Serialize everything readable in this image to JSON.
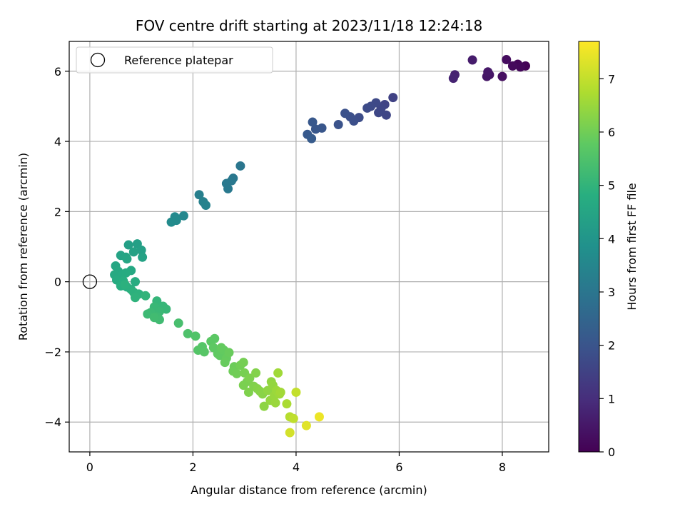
{
  "chart_data": {
    "type": "scatter",
    "title": "FOV centre drift starting at 2023/11/18 12:24:18",
    "xlabel": "Angular distance from reference (arcmin)",
    "ylabel": "Rotation from reference (arcmin)",
    "xlim": [
      -0.4,
      8.9
    ],
    "ylim": [
      -4.85,
      6.85
    ],
    "xticks": [
      0,
      2,
      4,
      6,
      8
    ],
    "yticks": [
      -4,
      -2,
      0,
      2,
      4,
      6
    ],
    "grid": true,
    "legend": {
      "placement": "top-left",
      "entries": [
        "Reference platepar"
      ]
    },
    "reference_point": {
      "x": 0,
      "y": 0,
      "label": "Reference platepar"
    },
    "colorbar": {
      "label": "Hours from first FF file",
      "colormap": "viridis",
      "range": [
        0,
        7.7
      ],
      "ticks": [
        0,
        1,
        2,
        3,
        4,
        5,
        6,
        7
      ]
    },
    "points": [
      {
        "x": 8.45,
        "y": 6.15,
        "hours": 0.05
      },
      {
        "x": 8.3,
        "y": 6.2,
        "hours": 0.1
      },
      {
        "x": 8.35,
        "y": 6.12,
        "hours": 0.15
      },
      {
        "x": 8.2,
        "y": 6.15,
        "hours": 0.2
      },
      {
        "x": 8.08,
        "y": 6.33,
        "hours": 0.25
      },
      {
        "x": 8.0,
        "y": 5.85,
        "hours": 0.3
      },
      {
        "x": 7.75,
        "y": 5.9,
        "hours": 0.4
      },
      {
        "x": 7.7,
        "y": 5.85,
        "hours": 0.45
      },
      {
        "x": 7.72,
        "y": 5.98,
        "hours": 0.5
      },
      {
        "x": 7.42,
        "y": 6.32,
        "hours": 0.6
      },
      {
        "x": 7.08,
        "y": 5.9,
        "hours": 0.7
      },
      {
        "x": 7.05,
        "y": 5.8,
        "hours": 0.75
      },
      {
        "x": 5.88,
        "y": 5.25,
        "hours": 1.5
      },
      {
        "x": 5.72,
        "y": 5.05,
        "hours": 1.55
      },
      {
        "x": 5.65,
        "y": 4.95,
        "hours": 1.6
      },
      {
        "x": 5.75,
        "y": 4.75,
        "hours": 1.62
      },
      {
        "x": 5.6,
        "y": 4.82,
        "hours": 1.65
      },
      {
        "x": 5.55,
        "y": 5.1,
        "hours": 1.7
      },
      {
        "x": 5.45,
        "y": 5.0,
        "hours": 1.72
      },
      {
        "x": 5.38,
        "y": 4.95,
        "hours": 1.75
      },
      {
        "x": 5.22,
        "y": 4.68,
        "hours": 1.8
      },
      {
        "x": 5.12,
        "y": 4.58,
        "hours": 1.85
      },
      {
        "x": 5.05,
        "y": 4.7,
        "hours": 1.88
      },
      {
        "x": 4.95,
        "y": 4.8,
        "hours": 1.9
      },
      {
        "x": 4.82,
        "y": 4.48,
        "hours": 1.95
      },
      {
        "x": 4.5,
        "y": 4.38,
        "hours": 2.05
      },
      {
        "x": 4.38,
        "y": 4.35,
        "hours": 2.08
      },
      {
        "x": 4.32,
        "y": 4.55,
        "hours": 2.1
      },
      {
        "x": 4.22,
        "y": 4.2,
        "hours": 2.15
      },
      {
        "x": 4.3,
        "y": 4.08,
        "hours": 2.2
      },
      {
        "x": 2.92,
        "y": 3.3,
        "hours": 3.0
      },
      {
        "x": 2.78,
        "y": 2.95,
        "hours": 3.05
      },
      {
        "x": 2.75,
        "y": 2.88,
        "hours": 3.08
      },
      {
        "x": 2.65,
        "y": 2.8,
        "hours": 3.1
      },
      {
        "x": 2.68,
        "y": 2.65,
        "hours": 3.12
      },
      {
        "x": 2.12,
        "y": 2.48,
        "hours": 3.3
      },
      {
        "x": 2.2,
        "y": 2.28,
        "hours": 3.35
      },
      {
        "x": 2.25,
        "y": 2.18,
        "hours": 3.38
      },
      {
        "x": 1.82,
        "y": 1.88,
        "hours": 3.55
      },
      {
        "x": 1.65,
        "y": 1.85,
        "hours": 3.6
      },
      {
        "x": 1.68,
        "y": 1.75,
        "hours": 3.62
      },
      {
        "x": 1.58,
        "y": 1.7,
        "hours": 3.65
      },
      {
        "x": 0.75,
        "y": 1.05,
        "hours": 4.3
      },
      {
        "x": 0.92,
        "y": 1.08,
        "hours": 4.32
      },
      {
        "x": 1.0,
        "y": 0.9,
        "hours": 4.35
      },
      {
        "x": 0.85,
        "y": 0.85,
        "hours": 4.38
      },
      {
        "x": 1.02,
        "y": 0.7,
        "hours": 4.4
      },
      {
        "x": 0.6,
        "y": 0.75,
        "hours": 4.45
      },
      {
        "x": 0.7,
        "y": 0.7,
        "hours": 4.48
      },
      {
        "x": 0.72,
        "y": 0.65,
        "hours": 4.5
      },
      {
        "x": 0.5,
        "y": 0.45,
        "hours": 4.55
      },
      {
        "x": 0.8,
        "y": 0.32,
        "hours": 4.6
      },
      {
        "x": 0.55,
        "y": 0.3,
        "hours": 4.62
      },
      {
        "x": 0.48,
        "y": 0.2,
        "hours": 4.65
      },
      {
        "x": 0.62,
        "y": 0.18,
        "hours": 4.68
      },
      {
        "x": 0.7,
        "y": 0.25,
        "hours": 4.7
      },
      {
        "x": 0.52,
        "y": 0.05,
        "hours": 4.72
      },
      {
        "x": 0.88,
        "y": 0.0,
        "hours": 4.75
      },
      {
        "x": 0.65,
        "y": 0.02,
        "hours": 4.78
      },
      {
        "x": 0.6,
        "y": -0.12,
        "hours": 4.8
      },
      {
        "x": 0.72,
        "y": -0.15,
        "hours": 4.82
      },
      {
        "x": 0.8,
        "y": -0.22,
        "hours": 4.85
      },
      {
        "x": 0.68,
        "y": -0.08,
        "hours": 4.88
      },
      {
        "x": 0.85,
        "y": -0.3,
        "hours": 4.9
      },
      {
        "x": 0.95,
        "y": -0.35,
        "hours": 4.92
      },
      {
        "x": 0.88,
        "y": -0.45,
        "hours": 4.95
      },
      {
        "x": 1.08,
        "y": -0.4,
        "hours": 5.0
      },
      {
        "x": 1.3,
        "y": -0.55,
        "hours": 5.05
      },
      {
        "x": 1.42,
        "y": -0.7,
        "hours": 5.08
      },
      {
        "x": 1.48,
        "y": -0.78,
        "hours": 5.1
      },
      {
        "x": 1.25,
        "y": -0.72,
        "hours": 5.12
      },
      {
        "x": 1.35,
        "y": -0.85,
        "hours": 5.15
      },
      {
        "x": 1.18,
        "y": -0.88,
        "hours": 5.18
      },
      {
        "x": 1.12,
        "y": -0.92,
        "hours": 5.2
      },
      {
        "x": 1.3,
        "y": -1.0,
        "hours": 5.22
      },
      {
        "x": 1.35,
        "y": -1.08,
        "hours": 5.25
      },
      {
        "x": 1.25,
        "y": -1.02,
        "hours": 5.28
      },
      {
        "x": 1.72,
        "y": -1.18,
        "hours": 5.4
      },
      {
        "x": 1.9,
        "y": -1.48,
        "hours": 5.5
      },
      {
        "x": 2.05,
        "y": -1.55,
        "hours": 5.55
      },
      {
        "x": 2.1,
        "y": -1.95,
        "hours": 5.6
      },
      {
        "x": 2.18,
        "y": -1.85,
        "hours": 5.62
      },
      {
        "x": 2.22,
        "y": -2.0,
        "hours": 5.65
      },
      {
        "x": 2.35,
        "y": -1.7,
        "hours": 5.7
      },
      {
        "x": 2.42,
        "y": -1.62,
        "hours": 5.72
      },
      {
        "x": 2.4,
        "y": -1.88,
        "hours": 5.75
      },
      {
        "x": 2.48,
        "y": -2.05,
        "hours": 5.78
      },
      {
        "x": 2.52,
        "y": -2.1,
        "hours": 5.8
      },
      {
        "x": 2.6,
        "y": -1.95,
        "hours": 5.82
      },
      {
        "x": 2.55,
        "y": -1.88,
        "hours": 5.84
      },
      {
        "x": 2.65,
        "y": -2.18,
        "hours": 5.86
      },
      {
        "x": 2.62,
        "y": -2.3,
        "hours": 5.88
      },
      {
        "x": 2.7,
        "y": -2.02,
        "hours": 5.9
      },
      {
        "x": 2.8,
        "y": -2.42,
        "hours": 5.95
      },
      {
        "x": 2.78,
        "y": -2.55,
        "hours": 5.97
      },
      {
        "x": 2.85,
        "y": -2.62,
        "hours": 6.0
      },
      {
        "x": 2.92,
        "y": -2.38,
        "hours": 6.02
      },
      {
        "x": 2.98,
        "y": -2.3,
        "hours": 6.05
      },
      {
        "x": 3.0,
        "y": -2.6,
        "hours": 6.08
      },
      {
        "x": 3.05,
        "y": -2.85,
        "hours": 6.1
      },
      {
        "x": 2.98,
        "y": -2.95,
        "hours": 6.12
      },
      {
        "x": 3.1,
        "y": -2.75,
        "hours": 6.15
      },
      {
        "x": 3.08,
        "y": -3.15,
        "hours": 6.18
      },
      {
        "x": 3.18,
        "y": -2.98,
        "hours": 6.2
      },
      {
        "x": 3.22,
        "y": -2.6,
        "hours": 6.22
      },
      {
        "x": 3.25,
        "y": -3.05,
        "hours": 6.25
      },
      {
        "x": 3.3,
        "y": -3.12,
        "hours": 6.28
      },
      {
        "x": 3.35,
        "y": -3.2,
        "hours": 6.3
      },
      {
        "x": 3.38,
        "y": -3.55,
        "hours": 6.35
      },
      {
        "x": 3.45,
        "y": -3.1,
        "hours": 6.38
      },
      {
        "x": 3.52,
        "y": -2.85,
        "hours": 6.4
      },
      {
        "x": 3.55,
        "y": -2.95,
        "hours": 6.42
      },
      {
        "x": 3.5,
        "y": -3.38,
        "hours": 6.45
      },
      {
        "x": 3.58,
        "y": -3.25,
        "hours": 6.48
      },
      {
        "x": 3.6,
        "y": -3.45,
        "hours": 6.5
      },
      {
        "x": 3.62,
        "y": -3.1,
        "hours": 6.52
      },
      {
        "x": 3.68,
        "y": -3.2,
        "hours": 6.55
      },
      {
        "x": 3.65,
        "y": -2.6,
        "hours": 6.58
      },
      {
        "x": 3.7,
        "y": -3.15,
        "hours": 6.6
      },
      {
        "x": 3.82,
        "y": -3.48,
        "hours": 6.7
      },
      {
        "x": 3.88,
        "y": -3.85,
        "hours": 6.85
      },
      {
        "x": 3.95,
        "y": -3.9,
        "hours": 6.95
      },
      {
        "x": 4.0,
        "y": -3.15,
        "hours": 7.0
      },
      {
        "x": 3.88,
        "y": -4.3,
        "hours": 7.2
      },
      {
        "x": 4.2,
        "y": -4.1,
        "hours": 7.35
      },
      {
        "x": 4.45,
        "y": -3.85,
        "hours": 7.5
      }
    ]
  }
}
